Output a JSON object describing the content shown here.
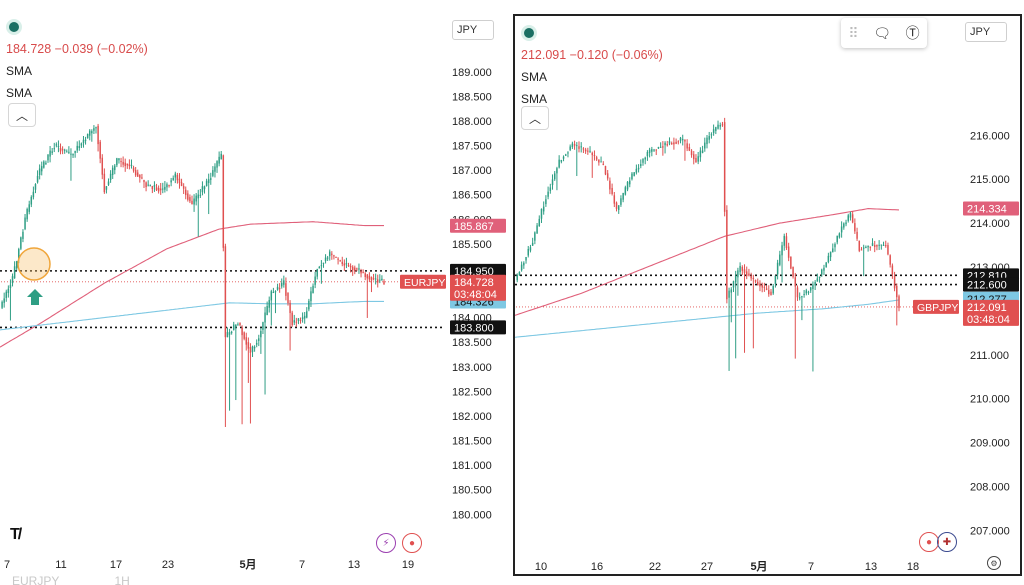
{
  "panes": [
    {
      "id": "left",
      "legend": {
        "price": "184.728",
        "change": "−0.039",
        "change_pct": "(−0.02%)",
        "indicators": [
          "SMA",
          "SMA"
        ]
      },
      "currency": "JPY",
      "symbol": "EURJPY",
      "countdown": "03:48:04",
      "ghost_symbol": "EURJPY",
      "ghost_interval": "1H",
      "badges": {
        "sma_long": "185.867",
        "level_high": "184.950",
        "last": "184.728",
        "sma_short": "184.326",
        "level_low": "183.800"
      },
      "colors": {
        "up": "#2e9e84",
        "down": "#e05050",
        "sma_long": "#e0607a",
        "sma_short": "#7ec8e3",
        "level": "#111111"
      }
    },
    {
      "id": "right",
      "legend": {
        "price": "212.091",
        "change": "−0.120",
        "change_pct": "(−0.06%)",
        "indicators": [
          "SMA",
          "SMA"
        ]
      },
      "currency": "JPY",
      "symbol": "GBPJPY",
      "countdown": "03:48:04",
      "badges": {
        "sma_long": "214.334",
        "level_high": "212.810",
        "level_low": "212.600",
        "sma_short": "212.277",
        "last": "212.091"
      },
      "colors": {
        "up": "#2e9e84",
        "down": "#e05050",
        "sma_long": "#e0607a",
        "sma_short": "#7ec8e3",
        "level": "#111111"
      }
    }
  ],
  "chart_data": [
    {
      "type": "candlestick",
      "symbol": "EURJPY",
      "y_ticks": [
        "189.000",
        "188.500",
        "188.000",
        "187.500",
        "187.000",
        "186.500",
        "186.000",
        "185.500",
        "185.000",
        "184.500",
        "184.000",
        "183.500",
        "183.000",
        "182.500",
        "182.000",
        "181.500",
        "181.000",
        "180.500",
        "180.000"
      ],
      "ylim": [
        179.7,
        189.3
      ],
      "x_ticks": [
        "7",
        "11",
        "17",
        "23",
        "5月",
        "7",
        "13",
        "19"
      ],
      "horizontal_levels": [
        184.95,
        183.8
      ],
      "last_price": 184.728,
      "sma_long_last": 185.867,
      "sma_short_last": 184.326,
      "anchors": [
        [
          0,
          184.2
        ],
        [
          6,
          184.8
        ],
        [
          12,
          186.0
        ],
        [
          18,
          186.9
        ],
        [
          26,
          187.5
        ],
        [
          34,
          187.3
        ],
        [
          42,
          187.7
        ],
        [
          46,
          187.9
        ],
        [
          50,
          186.6
        ],
        [
          56,
          187.2
        ],
        [
          62,
          187.1
        ],
        [
          70,
          186.7
        ],
        [
          78,
          186.6
        ],
        [
          84,
          186.9
        ],
        [
          92,
          186.3
        ],
        [
          100,
          186.8
        ],
        [
          106,
          187.3
        ],
        [
          108,
          183.6
        ],
        [
          114,
          183.9
        ],
        [
          120,
          183.3
        ],
        [
          124,
          183.6
        ],
        [
          130,
          184.5
        ],
        [
          136,
          184.7
        ],
        [
          140,
          183.9
        ],
        [
          146,
          184.0
        ],
        [
          152,
          185.0
        ],
        [
          158,
          185.3
        ],
        [
          164,
          185.1
        ],
        [
          170,
          185.0
        ],
        [
          178,
          184.8
        ],
        [
          184,
          184.73
        ]
      ],
      "sma_long_anchors": [
        [
          0,
          183.4
        ],
        [
          20,
          183.9
        ],
        [
          50,
          184.7
        ],
        [
          80,
          185.4
        ],
        [
          105,
          185.8
        ],
        [
          120,
          185.9
        ],
        [
          150,
          185.95
        ],
        [
          175,
          185.87
        ]
      ],
      "sma_short_anchors": [
        [
          0,
          183.75
        ],
        [
          40,
          183.95
        ],
        [
          80,
          184.15
        ],
        [
          110,
          184.3
        ],
        [
          130,
          184.28
        ],
        [
          150,
          184.28
        ],
        [
          175,
          184.33
        ]
      ]
    },
    {
      "type": "candlestick",
      "symbol": "GBPJPY",
      "y_ticks": [
        "216.000",
        "215.000",
        "214.000",
        "213.000",
        "212.000",
        "211.000",
        "210.000",
        "209.000",
        "208.000",
        "207.000"
      ],
      "ylim": [
        206.6,
        217.1
      ],
      "x_ticks": [
        "10",
        "16",
        "22",
        "27",
        "5月",
        "7",
        "13",
        "18"
      ],
      "horizontal_levels": [
        212.81,
        212.6
      ],
      "last_price": 212.091,
      "sma_long_last": 214.334,
      "sma_short_last": 212.277,
      "anchors": [
        [
          0,
          212.7
        ],
        [
          8,
          213.6
        ],
        [
          14,
          214.6
        ],
        [
          20,
          215.4
        ],
        [
          26,
          215.8
        ],
        [
          34,
          215.6
        ],
        [
          40,
          215.3
        ],
        [
          46,
          214.3
        ],
        [
          52,
          215.0
        ],
        [
          60,
          215.6
        ],
        [
          68,
          215.8
        ],
        [
          76,
          215.9
        ],
        [
          82,
          215.4
        ],
        [
          88,
          216.0
        ],
        [
          94,
          216.3
        ],
        [
          96,
          212.3
        ],
        [
          102,
          213.0
        ],
        [
          108,
          212.7
        ],
        [
          116,
          212.4
        ],
        [
          122,
          213.7
        ],
        [
          128,
          212.3
        ],
        [
          134,
          212.5
        ],
        [
          140,
          213.0
        ],
        [
          148,
          213.9
        ],
        [
          152,
          214.2
        ],
        [
          156,
          213.4
        ],
        [
          162,
          213.5
        ],
        [
          168,
          213.5
        ],
        [
          174,
          212.1
        ]
      ],
      "sma_long_anchors": [
        [
          0,
          211.9
        ],
        [
          30,
          212.4
        ],
        [
          60,
          213.0
        ],
        [
          95,
          213.7
        ],
        [
          120,
          214.0
        ],
        [
          145,
          214.2
        ],
        [
          160,
          214.33
        ],
        [
          174,
          214.3
        ]
      ],
      "sma_short_anchors": [
        [
          0,
          211.4
        ],
        [
          40,
          211.6
        ],
        [
          80,
          211.8
        ],
        [
          110,
          211.95
        ],
        [
          140,
          212.05
        ],
        [
          160,
          212.15
        ],
        [
          174,
          212.25
        ]
      ]
    }
  ]
}
